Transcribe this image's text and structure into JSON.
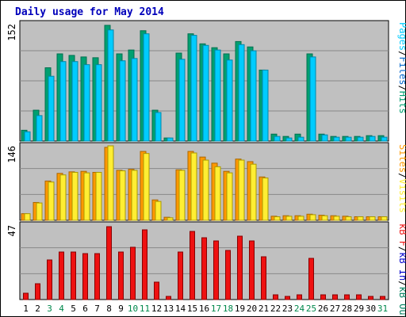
{
  "title": "Daily usage for May 2014",
  "colors": {
    "pages": "#00aa88",
    "files": "#00ddff",
    "hits": "#00a070",
    "sites": "#ff9900",
    "visits": "#ffee33",
    "kb_in": "#ee1111",
    "kb_out": "#008060",
    "kb_f": "#ee1111",
    "weekend": "#00884c",
    "weekday": "#000000",
    "panel_bg": "#c0c0c0",
    "gridline": "#888888"
  },
  "chart_data": [
    {
      "type": "bar",
      "name": "pages-files-hits",
      "max_label": "152",
      "ylim": [
        0,
        152
      ],
      "legend": [
        "Pages",
        "/",
        "Files",
        "/",
        "Hits"
      ],
      "categories": [
        "1",
        "2",
        "3",
        "4",
        "5",
        "6",
        "7",
        "8",
        "9",
        "10",
        "11",
        "12",
        "13",
        "14",
        "15",
        "16",
        "17",
        "18",
        "19",
        "20",
        "21",
        "22",
        "23",
        "24",
        "25",
        "26",
        "27",
        "28",
        "29",
        "30",
        "31"
      ],
      "series": [
        {
          "name": "Hits",
          "values": [
            14,
            40,
            95,
            113,
            111,
            109,
            108,
            150,
            113,
            118,
            143,
            40,
            4,
            114,
            139,
            126,
            121,
            113,
            129,
            122,
            92,
            9,
            6,
            9,
            113,
            9,
            6,
            6,
            6,
            7,
            7
          ]
        },
        {
          "name": "Files",
          "values": [
            12,
            33,
            84,
            103,
            103,
            99,
            99,
            144,
            104,
            107,
            139,
            37,
            4,
            106,
            137,
            124,
            118,
            105,
            125,
            117,
            92,
            6,
            4,
            5,
            109,
            8,
            5,
            5,
            5,
            6,
            5
          ]
        }
      ]
    },
    {
      "type": "bar",
      "name": "sites-visits",
      "max_label": "146",
      "ylim": [
        0,
        146
      ],
      "legend": [
        "Sites",
        "/",
        "Visits"
      ],
      "categories": [
        "1",
        "2",
        "3",
        "4",
        "5",
        "6",
        "7",
        "8",
        "9",
        "10",
        "11",
        "12",
        "13",
        "14",
        "15",
        "16",
        "17",
        "18",
        "19",
        "20",
        "21",
        "22",
        "23",
        "24",
        "25",
        "26",
        "27",
        "28",
        "29",
        "30",
        "31"
      ],
      "series": [
        {
          "name": "Sites",
          "values": [
            13,
            35,
            77,
            92,
            95,
            96,
            94,
            143,
            98,
            100,
            135,
            40,
            6,
            99,
            135,
            124,
            112,
            96,
            120,
            115,
            85,
            8,
            9,
            9,
            12,
            10,
            9,
            8,
            7,
            7,
            7
          ]
        },
        {
          "name": "Visits",
          "values": [
            13,
            34,
            75,
            89,
            94,
            93,
            94,
            146,
            97,
            98,
            131,
            37,
            5,
            98,
            132,
            118,
            105,
            93,
            118,
            110,
            83,
            7,
            8,
            8,
            11,
            9,
            8,
            7,
            7,
            7,
            7
          ]
        }
      ]
    },
    {
      "type": "bar",
      "name": "kb-in-out",
      "max_label": "47",
      "ylim": [
        0,
        47
      ],
      "legend": [
        "kB F",
        "/",
        "kB In",
        "/",
        "kB Out"
      ],
      "categories": [
        "1",
        "2",
        "3",
        "4",
        "5",
        "6",
        "7",
        "8",
        "9",
        "10",
        "11",
        "12",
        "13",
        "14",
        "15",
        "16",
        "17",
        "18",
        "19",
        "20",
        "21",
        "22",
        "23",
        "24",
        "25",
        "26",
        "27",
        "28",
        "29",
        "30",
        "31"
      ],
      "series": [
        {
          "name": "kB F",
          "values": [
            4,
            10,
            25,
            30,
            30,
            29,
            29,
            46,
            30,
            33,
            44,
            11,
            2,
            30,
            43,
            39,
            37,
            31,
            40,
            37,
            27,
            3,
            2,
            3,
            26,
            3,
            3,
            3,
            3,
            2,
            2
          ]
        }
      ]
    }
  ],
  "weekends": [
    "3",
    "4",
    "10",
    "11",
    "17",
    "18",
    "24",
    "25",
    "31"
  ]
}
